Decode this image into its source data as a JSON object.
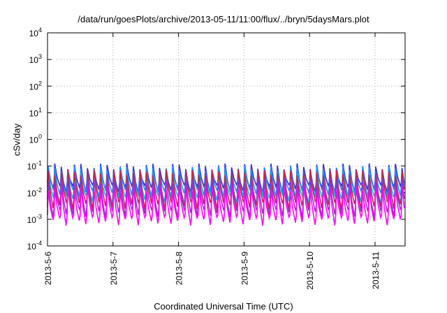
{
  "chart_data": {
    "type": "line",
    "title": "/data/run/goesPlots/archive/2013-05-11/11:00/flux/../bryn/5daysMars.plot",
    "xlabel": "Coordinated Universal Time (UTC)",
    "ylabel": "cSv/day",
    "yscale": "log",
    "ylim": [
      0.0001,
      10000
    ],
    "xlim": [
      "2013-05-06T00:00",
      "2013-05-11T11:00"
    ],
    "grid": true,
    "y_ticks": [
      {
        "base": "10",
        "exp": "4"
      },
      {
        "base": "10",
        "exp": "3"
      },
      {
        "base": "10",
        "exp": "2"
      },
      {
        "base": "10",
        "exp": "1"
      },
      {
        "base": "10",
        "exp": "0"
      },
      {
        "base": "10",
        "exp": "-1"
      },
      {
        "base": "10",
        "exp": "-2"
      },
      {
        "base": "10",
        "exp": "-3"
      },
      {
        "base": "10",
        "exp": "-4"
      }
    ],
    "x_ticks": [
      "2013-5-6",
      "2013-5-7",
      "2013-5-8",
      "2013-5-9",
      "2013-5-10",
      "2013-5-11"
    ],
    "series": [
      {
        "color": "#3030d8",
        "peak": 0.1,
        "trough": 0.015
      },
      {
        "color": "#1e90ff",
        "peak": 0.08,
        "trough": 0.01
      },
      {
        "color": "#00c8c8",
        "peak": 0.05,
        "trough": 0.006
      },
      {
        "color": "#cc2244",
        "peak": 0.06,
        "trough": 0.0035
      },
      {
        "color": "#9932cc",
        "peak": 0.03,
        "trough": 0.0018
      },
      {
        "color": "#ff00ff",
        "peak": 0.015,
        "trough": 0.0009
      }
    ]
  }
}
